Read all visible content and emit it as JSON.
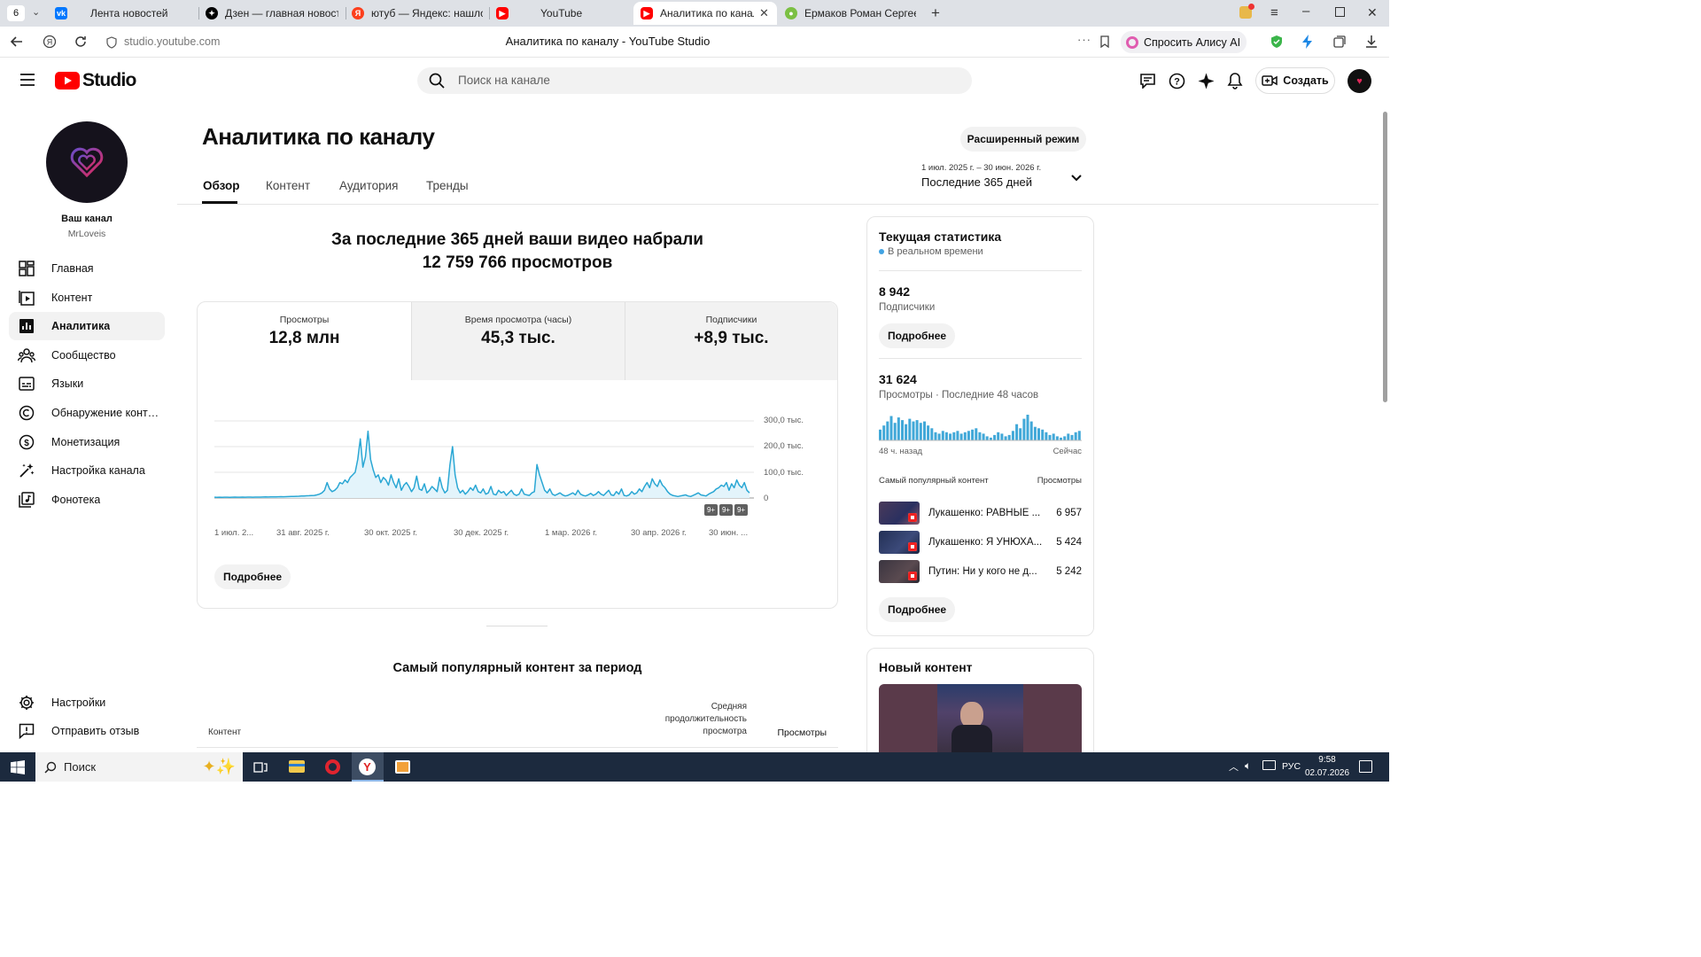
{
  "browser": {
    "tab_count": "6",
    "tabs": [
      {
        "label": "Лента новостей"
      },
      {
        "label": "Дзен — главная новостна"
      },
      {
        "label": "ютуб — Яндекс: нашлось"
      },
      {
        "label": "YouTube"
      },
      {
        "label": "Аналитика по каналу -"
      },
      {
        "label": "Ермаков Роман Сергееви"
      }
    ],
    "url": "studio.youtube.com",
    "page_title": "Аналитика по каналу - YouTube Studio",
    "alice_label": "Спросить Алису AI"
  },
  "header": {
    "logo_text": "Studio",
    "search_placeholder": "Поиск на канале",
    "create_label": "Создать"
  },
  "sidebar": {
    "channel_label": "Ваш канал",
    "channel_name": "MrLoveis",
    "items": [
      {
        "label": "Главная",
        "icon": "dashboard-icon"
      },
      {
        "label": "Контент",
        "icon": "content-icon"
      },
      {
        "label": "Аналитика",
        "icon": "analytics-icon"
      },
      {
        "label": "Сообщество",
        "icon": "community-icon"
      },
      {
        "label": "Языки",
        "icon": "subtitles-icon"
      },
      {
        "label": "Обнаружение контен...",
        "icon": "copyright-icon"
      },
      {
        "label": "Монетизация",
        "icon": "monetization-icon"
      },
      {
        "label": "Настройка канала",
        "icon": "customization-icon"
      },
      {
        "label": "Фонотека",
        "icon": "audio-library-icon"
      }
    ],
    "settings_label": "Настройки",
    "feedback_label": "Отправить отзыв"
  },
  "main": {
    "title": "Аналитика по каналу",
    "advanced_mode_label": "Расширенный режим",
    "tabs": [
      {
        "label": "Обзор"
      },
      {
        "label": "Контент"
      },
      {
        "label": "Аудитория"
      },
      {
        "label": "Тренды"
      }
    ],
    "date_range": "1 июл. 2025 г. – 30 июн. 2026 г.",
    "date_preset": "Последние 365 дней",
    "summary_line1": "За последние 365 дней ваши видео набрали",
    "summary_line2": "12 759 766 просмотров",
    "metrics": [
      {
        "label": "Просмотры",
        "value": "12,8 млн"
      },
      {
        "label": "Время просмотра (часы)",
        "value": "45,3 тыс."
      },
      {
        "label": "Подписчики",
        "value": "+8,9 тыс."
      }
    ],
    "chart_more_label": "Подробнее",
    "badges": [
      "9+",
      "9+",
      "9+"
    ],
    "top_content_title": "Самый популярный контент за период",
    "table_headers": {
      "content": "Контент",
      "avg_duration": "Средняя продолжительность просмотра",
      "views": "Просмотры"
    }
  },
  "chart_data": {
    "type": "area",
    "x_tick_labels": [
      "1 июл. 2...",
      "31 авг. 2025 г.",
      "30 окт. 2025 г.",
      "30 дек. 2025 г.",
      "1 мар. 2026 г.",
      "30 апр. 2026 г.",
      "30 июн. ..."
    ],
    "y_tick_labels": [
      "300,0 тыс.",
      "200,0 тыс.",
      "100,0 тыс.",
      "0"
    ],
    "ylim": [
      0,
      300000
    ],
    "series": [
      {
        "values": [
          3000,
          2500,
          3000,
          2800,
          3200,
          3000,
          2900,
          3100,
          3300,
          3000,
          3200,
          3400,
          3100,
          3300,
          3500,
          3200,
          3400,
          3600,
          3500,
          3800,
          4000,
          3900,
          4200,
          4500,
          4300,
          4800,
          5000,
          4700,
          5200,
          5500,
          5800,
          6000,
          6500,
          7000,
          7500,
          8000,
          8500,
          9000,
          9500,
          10000,
          12000,
          15000,
          20000,
          30000,
          60000,
          35000,
          25000,
          30000,
          40000,
          60000,
          55000,
          70000,
          60000,
          80000,
          90000,
          100000,
          150000,
          230000,
          120000,
          160000,
          260000,
          150000,
          110000,
          80000,
          90000,
          60000,
          80000,
          70000,
          50000,
          90000,
          60000,
          40000,
          75000,
          30000,
          50000,
          60000,
          45000,
          25000,
          40000,
          85000,
          35000,
          30000,
          55000,
          20000,
          30000,
          45000,
          35000,
          25000,
          80000,
          40000,
          20000,
          30000,
          130000,
          200000,
          90000,
          40000,
          20000,
          30000,
          15000,
          25000,
          40000,
          30000,
          50000,
          25000,
          20000,
          35000,
          15000,
          20000,
          45000,
          15000,
          12000,
          30000,
          20000,
          25000,
          10000,
          20000,
          30000,
          15000,
          10000,
          15000,
          35000,
          15000,
          12000,
          10000,
          20000,
          25000,
          130000,
          90000,
          60000,
          30000,
          20000,
          35000,
          15000,
          10000,
          15000,
          20000,
          12000,
          8000,
          10000,
          15000,
          20000,
          12000,
          30000,
          15000,
          10000,
          8000,
          12000,
          18000,
          10000,
          15000,
          25000,
          15000,
          10000,
          20000,
          30000,
          12000,
          10000,
          25000,
          15000,
          35000,
          10000,
          8000,
          12000,
          25000,
          15000,
          20000,
          35000,
          25000,
          45000,
          60000,
          40000,
          75000,
          55000,
          45000,
          70000,
          50000,
          40000,
          25000,
          15000,
          10000,
          8000,
          6000,
          8000,
          10000,
          12000,
          8000,
          6000,
          10000,
          15000,
          20000,
          12000,
          10000,
          8000,
          15000,
          20000,
          25000,
          35000,
          40000,
          50000,
          45000,
          60000,
          30000,
          55000,
          40000,
          70000,
          50000,
          40000,
          60000,
          30000,
          20000
        ]
      }
    ]
  },
  "realtime": {
    "title": "Текущая статистика",
    "subtitle": "В реальном времени",
    "subscribers_value": "8 942",
    "subscribers_label": "Подписчики",
    "more_label_1": "Подробнее",
    "views_value": "31 624",
    "views_label": "Просмотры · Последние 48 часов",
    "axis_left": "48 ч. назад",
    "axis_right": "Сейчас",
    "bars": [
      40,
      55,
      70,
      90,
      65,
      85,
      75,
      60,
      80,
      70,
      75,
      65,
      70,
      55,
      45,
      30,
      25,
      35,
      30,
      25,
      30,
      35,
      25,
      30,
      35,
      40,
      45,
      30,
      25,
      15,
      10,
      20,
      30,
      25,
      15,
      20,
      35,
      60,
      45,
      80,
      95,
      70,
      50,
      45,
      40,
      30,
      20,
      25,
      15,
      10,
      15,
      25,
      20,
      30,
      35
    ],
    "popular_title": "Самый популярный контент",
    "popular_views_header": "Просмотры",
    "popular": [
      {
        "title": "Лукашенко: РАВНЫЕ ...",
        "views": "6 957"
      },
      {
        "title": "Лукашенко: Я УНЮХА...",
        "views": "5 424"
      },
      {
        "title": "Путин: Ни у кого не д...",
        "views": "5 242"
      }
    ],
    "more_label_2": "Подробнее"
  },
  "new_content": {
    "title": "Новый контент"
  },
  "taskbar": {
    "search_label": "Поиск",
    "lang": "РУС",
    "time": "9:58",
    "date": "02.07.2026"
  }
}
